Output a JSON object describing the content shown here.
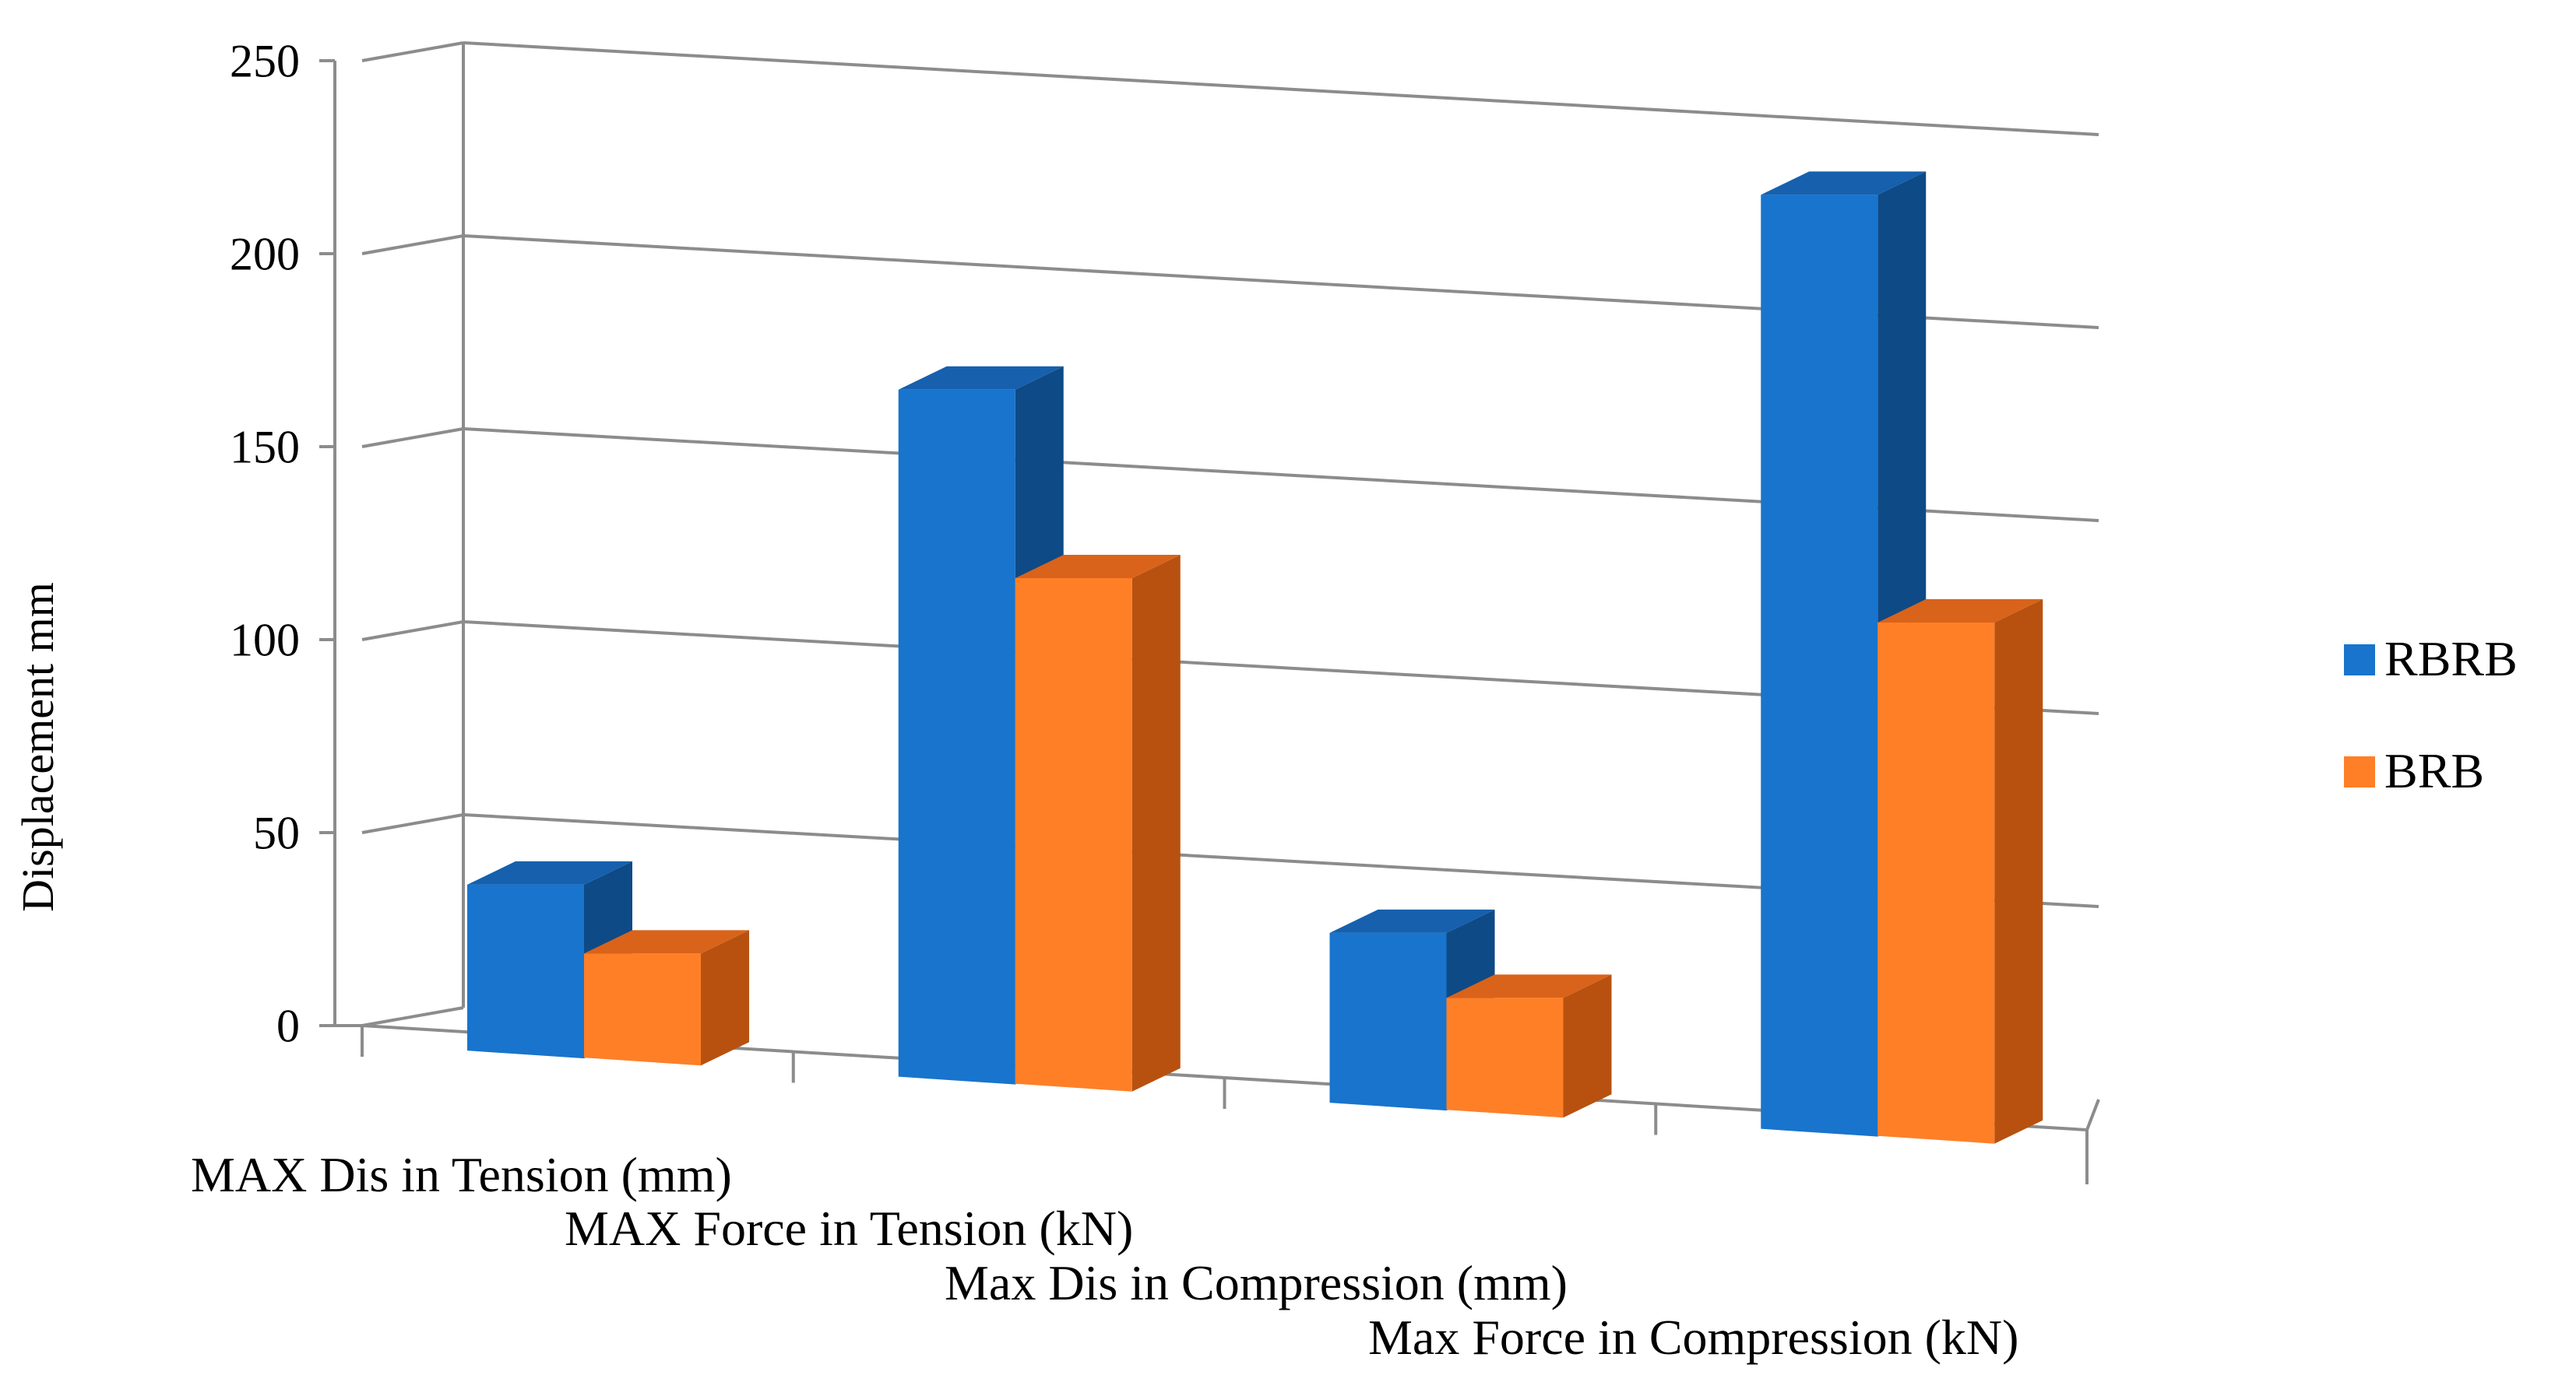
{
  "chart_data": {
    "type": "bar",
    "title": "",
    "xlabel": "",
    "ylabel": "Displacement mm",
    "ylim": [
      0,
      250
    ],
    "yticks": [
      "0",
      "50",
      "100",
      "150",
      "200",
      "250"
    ],
    "grid": true,
    "legend_position": "right",
    "categories": [
      "MAX Dis in Tension (mm)",
      "MAX Force in Tension (kN)",
      "Max Dis in Compression (mm)",
      "Max Force in Compression (kN)"
    ],
    "series": [
      {
        "name": "RBRB",
        "values": [
          43,
          178,
          44,
          242
        ],
        "color": "#1874CD",
        "side_color": "#0E4A86",
        "top_color": "#1660AE"
      },
      {
        "name": "BRB",
        "values": [
          27,
          131,
          29,
          133
        ],
        "color": "#FF7F27",
        "side_color": "#B8510F",
        "top_color": "#D9631A"
      }
    ]
  }
}
